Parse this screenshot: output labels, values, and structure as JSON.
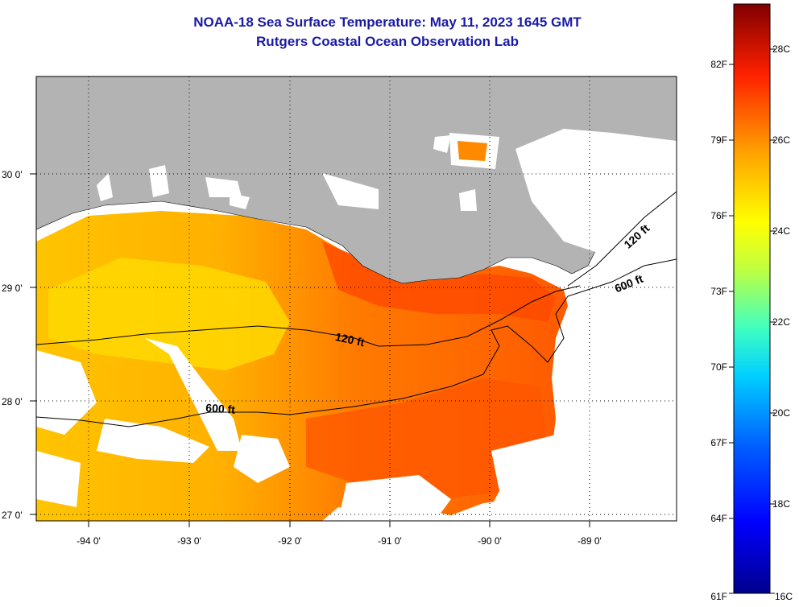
{
  "title": {
    "line1": "NOAA-18 Sea Surface Temperature:  May 11, 2023 1645 GMT",
    "line2": "Rutgers Coastal Ocean Observation Lab"
  },
  "map": {
    "lon_labels": [
      "-94 0'",
      "-93 0'",
      "-92 0'",
      "-91 0'",
      "-90 0'",
      "-89 0'"
    ],
    "lat_labels": [
      "30 0'",
      "29 0'",
      "28 0'",
      "27 0'"
    ],
    "contour_labels": [
      "120 ft",
      "600 ft",
      "120 ft",
      "600 ft"
    ],
    "colors": {
      "land": "#b3b3b3",
      "cloud": "#ffffff",
      "warm": "#ff5a00",
      "mid": "#ffb400",
      "cool": "#ffe01a"
    }
  },
  "colorbar": {
    "fahrenheit_labels": [
      "82F",
      "79F",
      "76F",
      "73F",
      "70F",
      "67F",
      "64F",
      "61F"
    ],
    "celsius_labels": [
      "28C",
      "26C",
      "24C",
      "22C",
      "20C",
      "18C",
      "16C"
    ],
    "range_c": [
      16,
      29
    ]
  }
}
